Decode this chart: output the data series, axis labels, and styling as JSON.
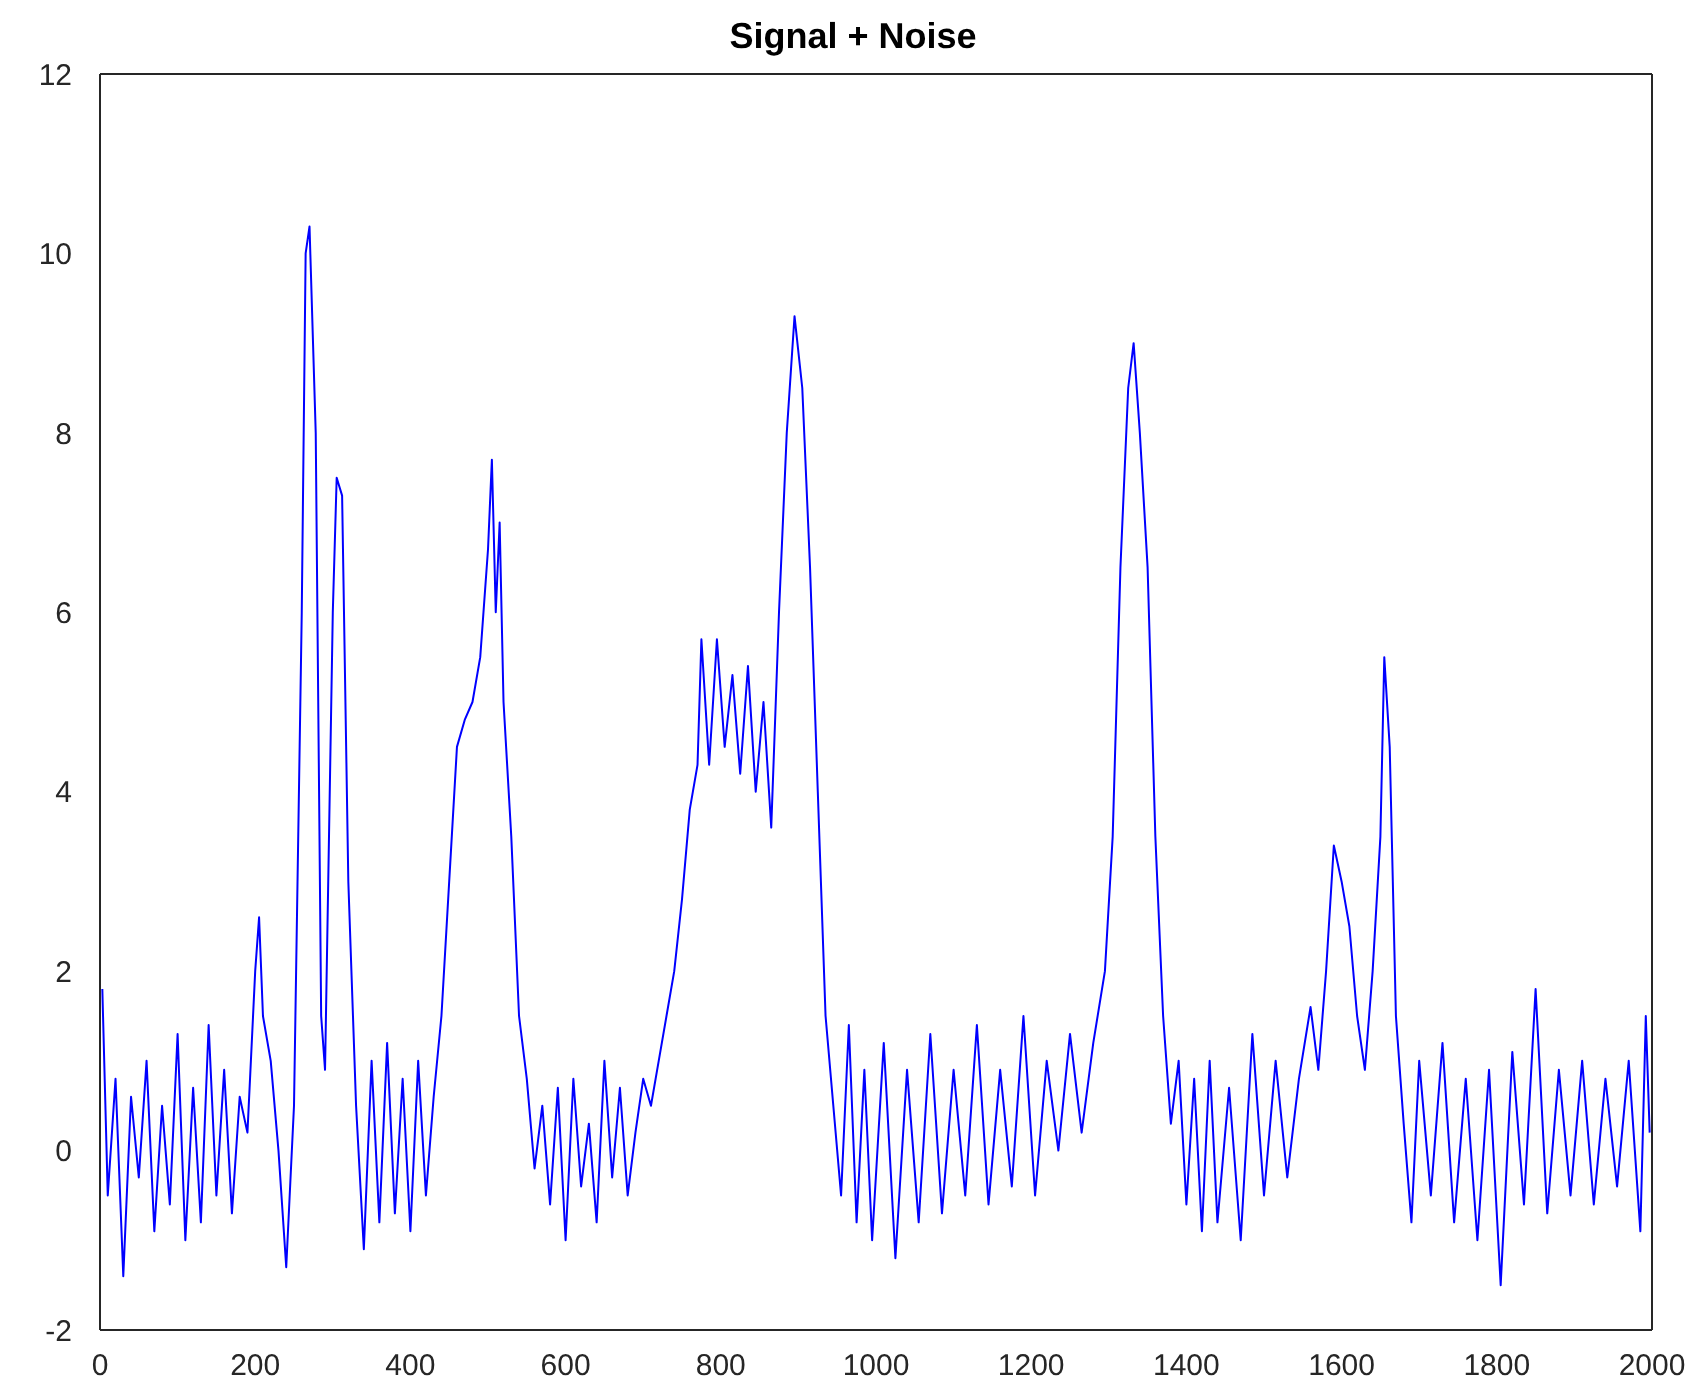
{
  "chart_data": {
    "type": "line",
    "title": "Signal + Noise",
    "x": [
      3,
      10,
      20,
      30,
      40,
      50,
      60,
      70,
      80,
      90,
      100,
      110,
      120,
      130,
      140,
      150,
      160,
      170,
      180,
      190,
      200,
      205,
      210,
      220,
      230,
      240,
      250,
      260,
      265,
      270,
      278,
      285,
      290,
      300,
      305,
      312,
      320,
      330,
      340,
      350,
      360,
      370,
      380,
      390,
      400,
      410,
      420,
      430,
      440,
      450,
      460,
      470,
      480,
      490,
      500,
      505,
      510,
      515,
      520,
      530,
      540,
      550,
      560,
      570,
      580,
      590,
      600,
      610,
      620,
      630,
      640,
      650,
      660,
      670,
      680,
      690,
      700,
      710,
      720,
      730,
      740,
      750,
      760,
      770,
      775,
      785,
      795,
      805,
      815,
      825,
      835,
      845,
      855,
      865,
      875,
      885,
      895,
      905,
      915,
      925,
      935,
      945,
      955,
      965,
      975,
      985,
      995,
      1010,
      1025,
      1040,
      1055,
      1070,
      1085,
      1100,
      1115,
      1130,
      1145,
      1160,
      1175,
      1190,
      1205,
      1220,
      1235,
      1250,
      1265,
      1280,
      1295,
      1305,
      1315,
      1325,
      1332,
      1340,
      1350,
      1360,
      1370,
      1380,
      1390,
      1400,
      1410,
      1420,
      1430,
      1440,
      1455,
      1470,
      1485,
      1500,
      1515,
      1530,
      1545,
      1560,
      1570,
      1580,
      1590,
      1600,
      1610,
      1620,
      1630,
      1640,
      1650,
      1655,
      1662,
      1670,
      1680,
      1690,
      1700,
      1715,
      1730,
      1745,
      1760,
      1775,
      1790,
      1805,
      1820,
      1835,
      1850,
      1865,
      1880,
      1895,
      1910,
      1925,
      1940,
      1955,
      1970,
      1985,
      1992,
      1997
    ],
    "series": [
      {
        "color": "#0000ff",
        "values": [
          1.8,
          -0.5,
          0.8,
          -1.4,
          0.6,
          -0.3,
          1.0,
          -0.9,
          0.5,
          -0.6,
          1.3,
          -1.0,
          0.7,
          -0.8,
          1.4,
          -0.5,
          0.9,
          -0.7,
          0.6,
          0.2,
          2.0,
          2.6,
          1.5,
          1.0,
          0.0,
          -1.3,
          0.5,
          6.0,
          10.0,
          10.3,
          8.0,
          1.5,
          0.9,
          6.0,
          7.5,
          7.3,
          3.0,
          0.5,
          -1.1,
          1.0,
          -0.8,
          1.2,
          -0.7,
          0.8,
          -0.9,
          1.0,
          -0.5,
          0.6,
          1.5,
          3.0,
          4.5,
          4.8,
          5.0,
          5.5,
          6.7,
          7.7,
          6.0,
          7.0,
          5.0,
          3.5,
          1.5,
          0.8,
          -0.2,
          0.5,
          -0.6,
          0.7,
          -1.0,
          0.8,
          -0.4,
          0.3,
          -0.8,
          1.0,
          -0.3,
          0.7,
          -0.5,
          0.2,
          0.8,
          0.5,
          1.0,
          1.5,
          2.0,
          2.8,
          3.8,
          4.3,
          5.7,
          4.3,
          5.7,
          4.5,
          5.3,
          4.2,
          5.4,
          4.0,
          5.0,
          3.6,
          6.0,
          8.0,
          9.3,
          8.5,
          6.5,
          4.0,
          1.5,
          0.5,
          -0.5,
          1.4,
          -0.8,
          0.9,
          -1.0,
          1.2,
          -1.2,
          0.9,
          -0.8,
          1.3,
          -0.7,
          0.9,
          -0.5,
          1.4,
          -0.6,
          0.9,
          -0.4,
          1.5,
          -0.5,
          1.0,
          0.0,
          1.3,
          0.2,
          1.2,
          2.0,
          3.5,
          6.5,
          8.5,
          9.0,
          8.0,
          6.5,
          3.5,
          1.5,
          0.3,
          1.0,
          -0.6,
          0.8,
          -0.9,
          1.0,
          -0.8,
          0.7,
          -1.0,
          1.3,
          -0.5,
          1.0,
          -0.3,
          0.8,
          1.6,
          0.9,
          2.0,
          3.4,
          3.0,
          2.5,
          1.5,
          0.9,
          2.0,
          3.5,
          5.5,
          4.5,
          1.5,
          0.3,
          -0.8,
          1.0,
          -0.5,
          1.2,
          -0.8,
          0.8,
          -1.0,
          0.9,
          -1.5,
          1.1,
          -0.6,
          1.8,
          -0.7,
          0.9,
          -0.5,
          1.0,
          -0.6,
          0.8,
          -0.4,
          1.0,
          -0.9,
          1.5,
          0.2
        ]
      }
    ],
    "xlim": [
      0,
      2000
    ],
    "xticks": [
      0,
      200,
      400,
      600,
      800,
      1000,
      1200,
      1400,
      1600,
      1800,
      2000
    ],
    "ylim": [
      -2,
      12
    ],
    "yticks": [
      -2,
      0,
      2,
      4,
      6,
      8,
      10,
      12
    ],
    "grid": false,
    "legend": false,
    "marker": "none",
    "line_style": "solid"
  }
}
